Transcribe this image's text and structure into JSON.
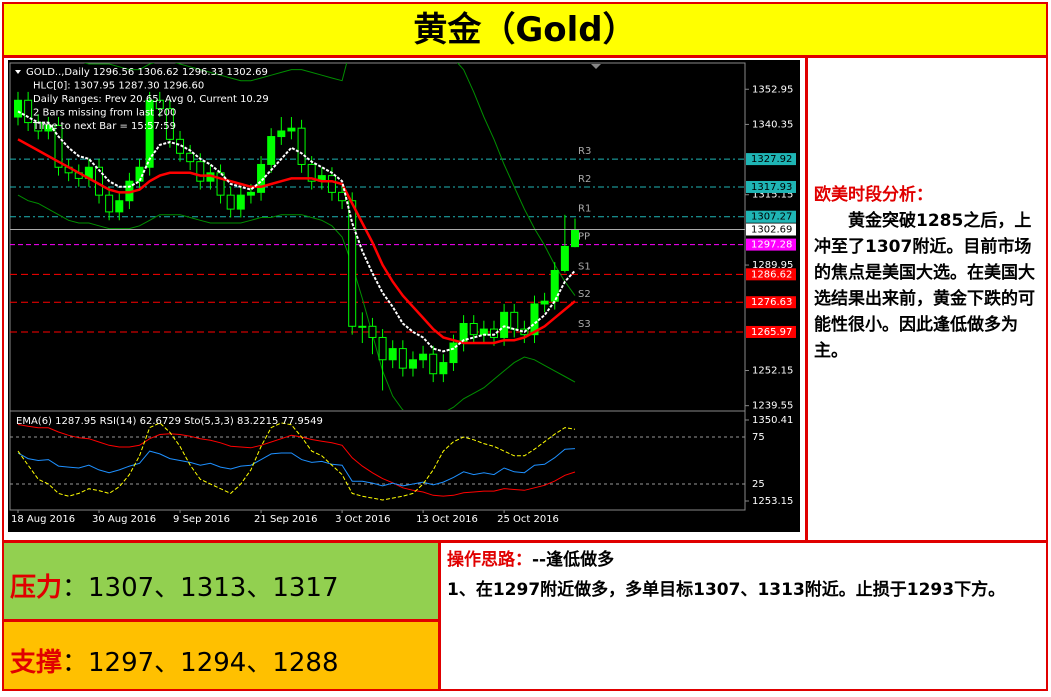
{
  "header": {
    "title": "黄金（Gold）"
  },
  "chart_data": {
    "type": "candlestick",
    "header_lines": [
      "GOLD..,Daily  1296.56 1306.62 1296.33 1302.69",
      "HLC[0]: 1307.95 1287.30 1296.60",
      "Daily Ranges:  Prev 20.65,  Avg 0,  Current 10.29",
      "2 Bars missing from last 200",
      "Time to next Bar = 15:57:59"
    ],
    "categories": [
      "18 Aug 2016",
      null,
      null,
      null,
      null,
      null,
      null,
      null,
      "30 Aug 2016",
      null,
      null,
      null,
      null,
      null,
      null,
      null,
      "9 Sep 2016",
      null,
      null,
      null,
      null,
      null,
      null,
      null,
      "21 Sep 2016",
      null,
      null,
      null,
      null,
      null,
      null,
      null,
      "3 Oct 2016",
      null,
      null,
      null,
      null,
      null,
      null,
      null,
      "13 Oct 2016",
      null,
      null,
      null,
      null,
      null,
      null,
      null,
      "25 Oct 2016",
      null,
      null,
      null,
      null,
      null,
      null,
      null
    ],
    "open": [
      1343,
      1349,
      1341,
      1338,
      1340,
      1325,
      1323,
      1321,
      1325,
      1315,
      1309,
      1313,
      1320,
      1325,
      1349,
      1346,
      1335,
      1330,
      1327,
      1320,
      1323,
      1315,
      1310,
      1315,
      1316,
      1326,
      1336,
      1338,
      1339,
      1326,
      1320,
      1322,
      1316,
      1313,
      1268,
      1268,
      1264,
      1256,
      1260,
      1253,
      1256,
      1258,
      1251,
      1255,
      1262,
      1269,
      1265,
      1267,
      1264,
      1273,
      1267,
      1265,
      1276,
      1277,
      1288,
      1296.56
    ],
    "high": [
      1352,
      1352,
      1344,
      1343,
      1343,
      1328,
      1326,
      1328,
      1328,
      1318,
      1316,
      1323,
      1328,
      1352,
      1352,
      1349,
      1338,
      1333,
      1330,
      1326,
      1326,
      1318,
      1318,
      1319,
      1329,
      1339,
      1343,
      1343,
      1342,
      1329,
      1325,
      1325,
      1319,
      1316,
      1273,
      1271,
      1267,
      1263,
      1263,
      1259,
      1261,
      1261,
      1258,
      1265,
      1272,
      1272,
      1270,
      1270,
      1276,
      1276,
      1270,
      1279,
      1280,
      1291,
      1307.95,
      1306.62
    ],
    "low": [
      1340,
      1338,
      1335,
      1335,
      1322,
      1320,
      1318,
      1318,
      1312,
      1306,
      1306,
      1310,
      1317,
      1322,
      1343,
      1332,
      1327,
      1324,
      1317,
      1317,
      1312,
      1307,
      1307,
      1312,
      1313,
      1323,
      1333,
      1335,
      1323,
      1317,
      1317,
      1313,
      1310,
      1265,
      1262,
      1258,
      1245,
      1253,
      1250,
      1250,
      1253,
      1248,
      1248,
      1252,
      1259,
      1262,
      1262,
      1261,
      1261,
      1264,
      1262,
      1262,
      1273,
      1274,
      1287.3,
      1296.33
    ],
    "close": [
      1349,
      1341,
      1338,
      1340,
      1325,
      1323,
      1321,
      1325,
      1315,
      1309,
      1313,
      1320,
      1325,
      1349,
      1346,
      1335,
      1330,
      1327,
      1320,
      1323,
      1315,
      1310,
      1315,
      1316,
      1326,
      1336,
      1338,
      1339,
      1326,
      1320,
      1322,
      1316,
      1313,
      1268,
      1268,
      1264,
      1256,
      1260,
      1253,
      1256,
      1258,
      1251,
      1255,
      1262,
      1269,
      1265,
      1267,
      1264,
      1273,
      1267,
      1265,
      1276,
      1277,
      1288,
      1296.6,
      1302.69
    ],
    "up_color": "#00ff00",
    "down_color": "#000000",
    "wick_color": "#00ff00",
    "ema": {
      "color": "#ffffff",
      "sub_color": "#ff0000",
      "values": [
        1345,
        1343,
        1341,
        1341,
        1336,
        1332,
        1329,
        1328,
        1324,
        1320,
        1318,
        1318,
        1320,
        1328,
        1333,
        1334,
        1333,
        1331,
        1328,
        1326,
        1323,
        1319,
        1318,
        1317,
        1320,
        1324,
        1328,
        1332,
        1330,
        1327,
        1325,
        1323,
        1320,
        1305,
        1295,
        1287,
        1280,
        1275,
        1269,
        1266,
        1264,
        1260,
        1259,
        1260,
        1263,
        1264,
        1265,
        1265,
        1268,
        1267,
        1266,
        1269,
        1272,
        1277,
        1284,
        1287.95
      ]
    },
    "ma": {
      "color": "#ff0000",
      "values": [
        1335,
        1333,
        1331,
        1329,
        1327,
        1325,
        1323,
        1321,
        1319,
        1317,
        1316,
        1316,
        1317,
        1320,
        1322,
        1323,
        1323,
        1323,
        1322,
        1322,
        1321,
        1320,
        1319,
        1318,
        1318,
        1319,
        1320,
        1321,
        1321,
        1321,
        1320,
        1320,
        1319,
        1312,
        1305,
        1298,
        1290,
        1284,
        1279,
        1275,
        1271,
        1267,
        1264,
        1263,
        1262,
        1262,
        1262,
        1262,
        1263,
        1263,
        1264,
        1266,
        1268,
        1271,
        1274,
        1277
      ]
    },
    "bands": {
      "color": "#008f00",
      "upper": [
        1366,
        1366,
        1365,
        1364,
        1364,
        1363,
        1363,
        1362,
        1362,
        1362,
        1361,
        1360,
        1360,
        1362,
        1363,
        1363,
        1362,
        1361,
        1360,
        1359,
        1358,
        1357,
        1356,
        1356,
        1357,
        1358,
        1359,
        1360,
        1360,
        1359,
        1358,
        1357,
        1356,
        1370,
        1378,
        1383,
        1386,
        1386,
        1385,
        1383,
        1380,
        1375,
        1369,
        1364,
        1360,
        1352,
        1343,
        1335,
        1326,
        1318,
        1310,
        1303,
        1297,
        1290,
        1284,
        1279
      ],
      "lower": [
        1315,
        1313,
        1312,
        1310,
        1308,
        1306,
        1305,
        1305,
        1304,
        1303,
        1303,
        1303,
        1304,
        1306,
        1308,
        1308,
        1308,
        1307,
        1306,
        1305,
        1305,
        1305,
        1305,
        1306,
        1307,
        1307,
        1308,
        1308,
        1308,
        1307,
        1306,
        1304,
        1300,
        1290,
        1278,
        1265,
        1252,
        1243,
        1238,
        1236,
        1236,
        1236,
        1237,
        1239,
        1242,
        1244,
        1246,
        1249,
        1252,
        1255,
        1257,
        1256,
        1254,
        1252,
        1250,
        1248
      ]
    },
    "ylim": [
      1238,
      1362
    ],
    "yticks": [
      1352.95,
      1340.35,
      1315.15,
      1289.95,
      1252.15,
      1239.55
    ],
    "levels": [
      {
        "name": "R3",
        "value": 1327.92,
        "color": "#1fb5b5"
      },
      {
        "name": "R2",
        "value": 1317.93,
        "color": "#1fb5b5"
      },
      {
        "name": "R1",
        "value": 1307.27,
        "color": "#1fb5b5"
      },
      {
        "name": "PP",
        "value": 1297.28,
        "color": "#ff00ff"
      },
      {
        "name": "S1",
        "value": 1286.62,
        "color": "#ff0000"
      },
      {
        "name": "S2",
        "value": 1276.63,
        "color": "#ff0000"
      },
      {
        "name": "S3",
        "value": 1265.97,
        "color": "#ff0000"
      }
    ],
    "indicator": {
      "label": "EMA(6) 1287.95  RSI(14) 62.6729  Sto(5,3,3) 83.2215 77.9549",
      "ylim": [
        0,
        100
      ],
      "yticks": [
        75,
        25
      ],
      "y2lim": [
        1253.15,
        1350.41
      ],
      "y2ticks": [
        1350.41,
        1253.15
      ],
      "rsi": {
        "color": "#1e90ff",
        "values": [
          58,
          52,
          50,
          51,
          44,
          43,
          42,
          45,
          40,
          37,
          40,
          44,
          47,
          60,
          57,
          52,
          50,
          48,
          45,
          47,
          43,
          41,
          44,
          45,
          51,
          57,
          58,
          58,
          51,
          48,
          49,
          46,
          45,
          28,
          28,
          26,
          23,
          26,
          23,
          25,
          27,
          24,
          27,
          32,
          38,
          35,
          37,
          35,
          42,
          38,
          37,
          45,
          46,
          53,
          62,
          62.6729
        ]
      },
      "stoch": {
        "color": "#ffff00",
        "values": [
          60,
          45,
          30,
          25,
          15,
          12,
          15,
          20,
          18,
          15,
          22,
          35,
          55,
          85,
          90,
          80,
          65,
          45,
          30,
          25,
          20,
          15,
          25,
          40,
          65,
          85,
          90,
          88,
          75,
          60,
          55,
          45,
          35,
          15,
          12,
          10,
          8,
          10,
          12,
          15,
          25,
          40,
          60,
          70,
          75,
          72,
          68,
          65,
          60,
          55,
          55,
          62,
          70,
          78,
          85,
          83.2215
        ]
      }
    }
  },
  "analysis": {
    "heading": "欧美时段分析：",
    "body": "黄金突破1285之后，上冲至了1307附近。目前市场的焦点是美国大选。在美国大选结果出来前，黄金下跌的可能性很小。因此逢低做多为主。"
  },
  "levels": {
    "resistance": {
      "label": "压力",
      "text": "：1307、1313、1317"
    },
    "support": {
      "label": "支撑",
      "text": "：1297、1294、1288"
    }
  },
  "strategy": {
    "heading": "操作思路：",
    "summary": "--逢低做多",
    "detail": "1、在1297附近做多，多单目标1307、1313附近。止损于1293下方。"
  }
}
